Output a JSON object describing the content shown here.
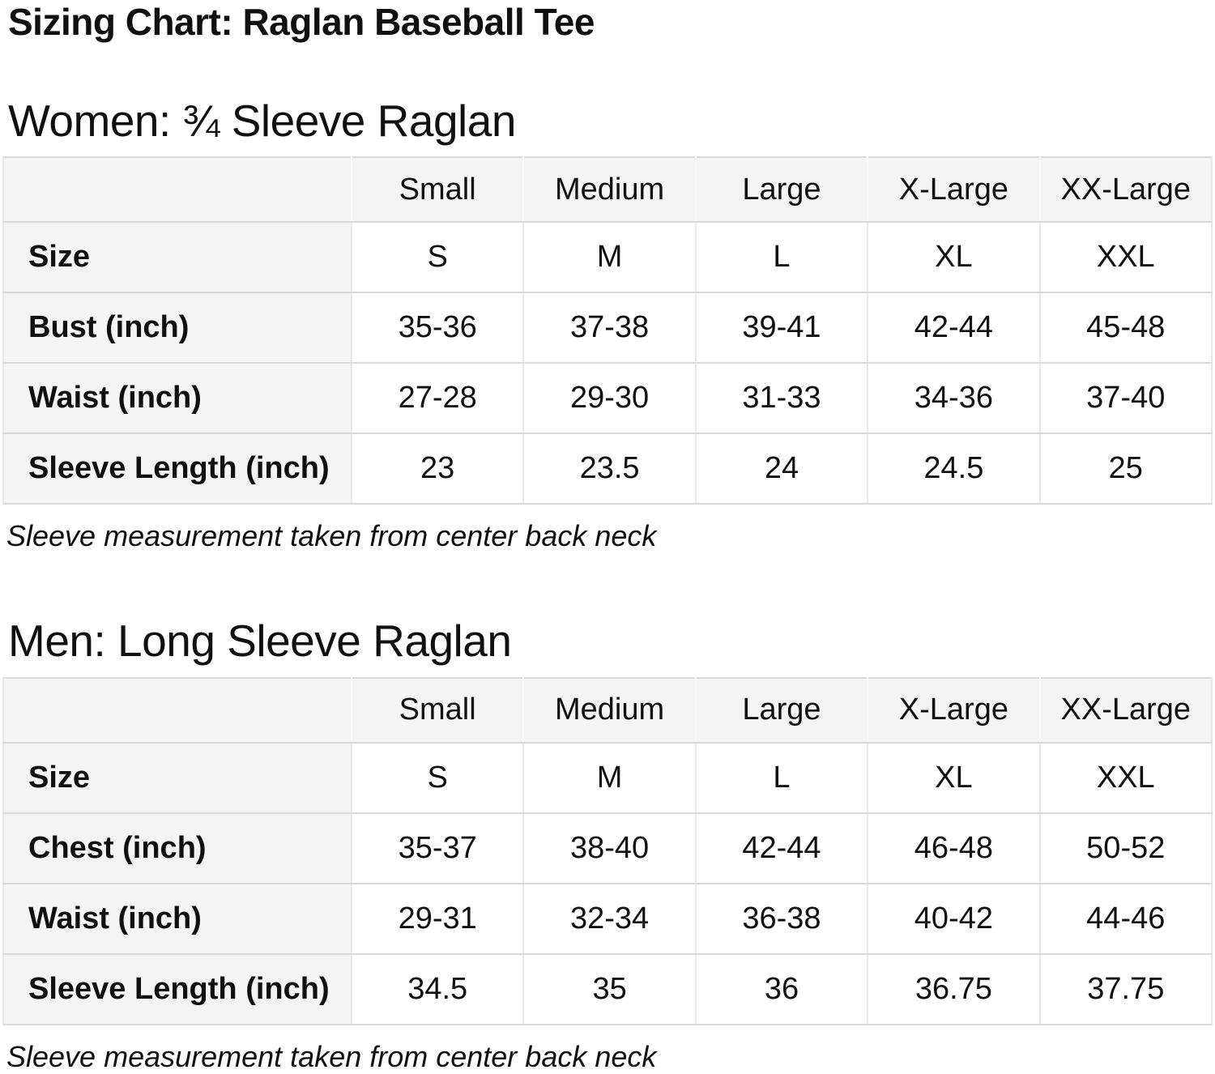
{
  "page": {
    "title": "Sizing Chart: Raglan Baseball Tee"
  },
  "colors": {
    "text": "#101010",
    "cellbg": "#f4f4f4",
    "border_h": "#d9d9d9",
    "border_v": "#e9e9e9",
    "pagebg": "#ffffff"
  },
  "sections": [
    {
      "heading": "Women: ¾ Sleeve Raglan",
      "note": "Sleeve measurement taken from center back neck",
      "table": {
        "columns": [
          "",
          "Small",
          "Medium",
          "Large",
          "X-Large",
          "XX-Large"
        ],
        "rows": [
          {
            "label": "Size",
            "values": [
              "S",
              "M",
              "L",
              "XL",
              "XXL"
            ]
          },
          {
            "label": "Bust (inch)",
            "values": [
              "35-36",
              "37-38",
              "39-41",
              "42-44",
              "45-48"
            ]
          },
          {
            "label": "Waist (inch)",
            "values": [
              "27-28",
              "29-30",
              "31-33",
              "34-36",
              "37-40"
            ]
          },
          {
            "label": "Sleeve Length (inch)",
            "values": [
              "23",
              "23.5",
              "24",
              "24.5",
              "25"
            ]
          }
        ]
      }
    },
    {
      "heading": "Men: Long Sleeve Raglan",
      "note": "Sleeve measurement taken from center back neck",
      "table": {
        "columns": [
          "",
          "Small",
          "Medium",
          "Large",
          "X-Large",
          "XX-Large"
        ],
        "rows": [
          {
            "label": "Size",
            "values": [
              "S",
              "M",
              "L",
              "XL",
              "XXL"
            ]
          },
          {
            "label": "Chest (inch)",
            "values": [
              "35-37",
              "38-40",
              "42-44",
              "46-48",
              "50-52"
            ]
          },
          {
            "label": "Waist (inch)",
            "values": [
              "29-31",
              "32-34",
              "36-38",
              "40-42",
              "44-46"
            ]
          },
          {
            "label": "Sleeve Length (inch)",
            "values": [
              "34.5",
              "35",
              "36",
              "36.75",
              "37.75"
            ]
          }
        ]
      }
    }
  ]
}
